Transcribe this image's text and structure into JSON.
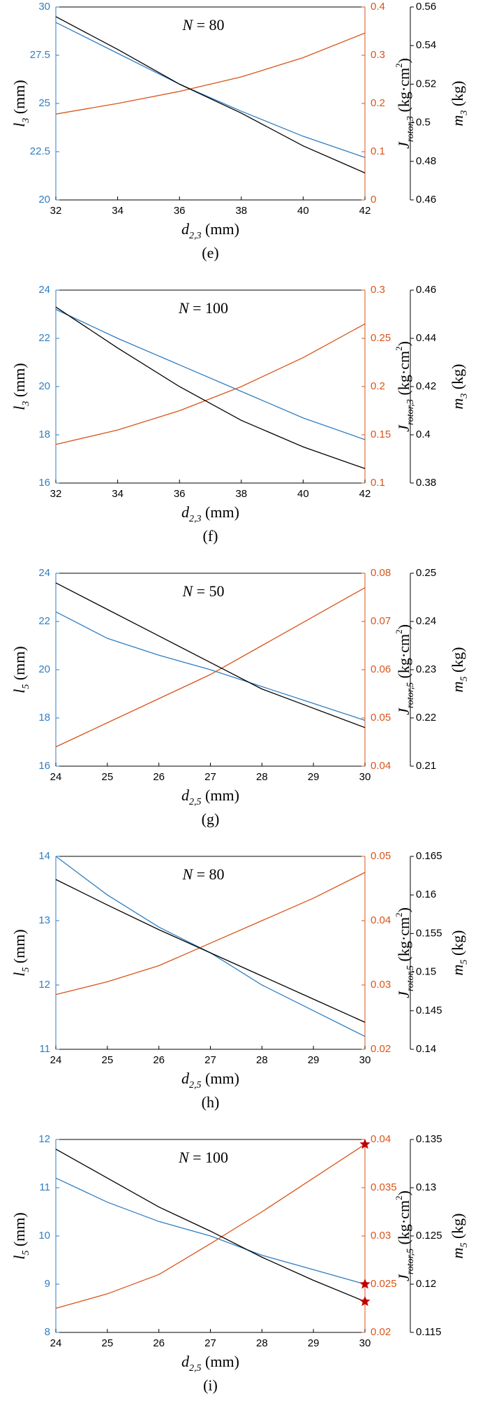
{
  "chart_data": [
    {
      "type": "line",
      "annotation": [
        {
          "text": "N",
          "style": "italic"
        },
        {
          "text": " = 80"
        }
      ],
      "panel_label": "(e)",
      "xlabel": [
        {
          "text": "d",
          "style": "italic"
        },
        {
          "text": "2,3",
          "style": "sub"
        },
        {
          "text": " (mm)"
        }
      ],
      "ylabel": [
        {
          "text": "l",
          "style": "italic"
        },
        {
          "text": "3",
          "style": "sub"
        },
        {
          "text": " (mm)"
        }
      ],
      "y2label": [
        {
          "text": "J",
          "style": "italic"
        },
        {
          "text": "rotor,3",
          "style": "sub"
        },
        {
          "text": " (kg·cm"
        },
        {
          "text": "2",
          "style": "sup"
        },
        {
          "text": ")"
        }
      ],
      "y3label": [
        {
          "text": "m",
          "style": "italic"
        },
        {
          "text": "3",
          "style": "sub"
        },
        {
          "text": " (kg)"
        }
      ],
      "x": [
        32,
        34,
        36,
        38,
        40,
        42
      ],
      "xlim": [
        32,
        42
      ],
      "xticks": [
        32,
        34,
        36,
        38,
        40,
        42
      ],
      "ylim": [
        20,
        30
      ],
      "yticks": [
        20,
        22.5,
        25,
        27.5,
        30
      ],
      "y2lim": [
        0,
        0.4
      ],
      "y2ticks": [
        0,
        0.1,
        0.2,
        0.3,
        0.4
      ],
      "y3lim": [
        0.46,
        0.56
      ],
      "y3ticks": [
        0.46,
        0.48,
        0.5,
        0.52,
        0.54,
        0.56
      ],
      "series": [
        {
          "axis": "y",
          "color": "#2f7ec2",
          "values": [
            29.2,
            27.6,
            26.0,
            24.6,
            23.3,
            22.2
          ]
        },
        {
          "axis": "y2",
          "color": "#d9541a",
          "values": [
            0.178,
            0.2,
            0.225,
            0.255,
            0.295,
            0.346
          ]
        },
        {
          "axis": "y3",
          "color": "#000000",
          "values": [
            0.555,
            0.538,
            0.52,
            0.505,
            0.488,
            0.474
          ]
        }
      ]
    },
    {
      "type": "line",
      "annotation": [
        {
          "text": "N",
          "style": "italic"
        },
        {
          "text": " = 100"
        }
      ],
      "panel_label": "(f)",
      "xlabel": [
        {
          "text": "d",
          "style": "italic"
        },
        {
          "text": "2,3",
          "style": "sub"
        },
        {
          "text": " (mm)"
        }
      ],
      "ylabel": [
        {
          "text": "l",
          "style": "italic"
        },
        {
          "text": "3",
          "style": "sub"
        },
        {
          "text": " (mm)"
        }
      ],
      "y2label": [
        {
          "text": "J",
          "style": "italic"
        },
        {
          "text": "rotor,3",
          "style": "sub"
        },
        {
          "text": " (kg·cm"
        },
        {
          "text": "2",
          "style": "sup"
        },
        {
          "text": ")"
        }
      ],
      "y3label": [
        {
          "text": "m",
          "style": "italic"
        },
        {
          "text": "3",
          "style": "sub"
        },
        {
          "text": " (kg)"
        }
      ],
      "x": [
        32,
        34,
        36,
        38,
        40,
        42
      ],
      "xlim": [
        32,
        42
      ],
      "xticks": [
        32,
        34,
        36,
        38,
        40,
        42
      ],
      "ylim": [
        16,
        24
      ],
      "yticks": [
        16,
        18,
        20,
        22,
        24
      ],
      "y2lim": [
        0.1,
        0.3
      ],
      "y2ticks": [
        0.1,
        0.15,
        0.2,
        0.25,
        0.3
      ],
      "y3lim": [
        0.38,
        0.46
      ],
      "y3ticks": [
        0.38,
        0.4,
        0.42,
        0.44,
        0.46
      ],
      "series": [
        {
          "axis": "y",
          "color": "#2f7ec2",
          "values": [
            23.2,
            22.0,
            20.9,
            19.8,
            18.7,
            17.8
          ]
        },
        {
          "axis": "y2",
          "color": "#d9541a",
          "values": [
            0.14,
            0.155,
            0.175,
            0.2,
            0.23,
            0.265
          ]
        },
        {
          "axis": "y3",
          "color": "#000000",
          "values": [
            0.453,
            0.436,
            0.42,
            0.406,
            0.395,
            0.386
          ]
        }
      ]
    },
    {
      "type": "line",
      "annotation": [
        {
          "text": "N",
          "style": "italic"
        },
        {
          "text": " = 50"
        }
      ],
      "panel_label": "(g)",
      "xlabel": [
        {
          "text": "d",
          "style": "italic"
        },
        {
          "text": "2,5",
          "style": "sub"
        },
        {
          "text": " (mm)"
        }
      ],
      "ylabel": [
        {
          "text": "l",
          "style": "italic"
        },
        {
          "text": "5",
          "style": "sub"
        },
        {
          "text": " (mm)"
        }
      ],
      "y2label": [
        {
          "text": "J",
          "style": "italic"
        },
        {
          "text": "rotor,5",
          "style": "sub"
        },
        {
          "text": " (kg·cm"
        },
        {
          "text": "2",
          "style": "sup"
        },
        {
          "text": ")"
        }
      ],
      "y3label": [
        {
          "text": "m",
          "style": "italic"
        },
        {
          "text": "5",
          "style": "sub"
        },
        {
          "text": " (kg)"
        }
      ],
      "x": [
        24,
        25,
        26,
        27,
        28,
        29,
        30
      ],
      "xlim": [
        24,
        30
      ],
      "xticks": [
        24,
        25,
        26,
        27,
        28,
        29,
        30
      ],
      "ylim": [
        16,
        24
      ],
      "yticks": [
        16,
        18,
        20,
        22,
        24
      ],
      "y2lim": [
        0.04,
        0.08
      ],
      "y2ticks": [
        0.04,
        0.05,
        0.06,
        0.07,
        0.08
      ],
      "y3lim": [
        0.21,
        0.25
      ],
      "y3ticks": [
        0.21,
        0.22,
        0.23,
        0.24,
        0.25
      ],
      "series": [
        {
          "axis": "y",
          "color": "#2f7ec2",
          "values": [
            22.4,
            21.3,
            20.6,
            20.0,
            19.3,
            18.6,
            17.9
          ]
        },
        {
          "axis": "y2",
          "color": "#d9541a",
          "values": [
            0.044,
            0.049,
            0.054,
            0.059,
            0.065,
            0.071,
            0.077
          ]
        },
        {
          "axis": "y3",
          "color": "#000000",
          "values": [
            0.248,
            0.2425,
            0.237,
            0.2315,
            0.226,
            0.222,
            0.218
          ]
        }
      ]
    },
    {
      "type": "line",
      "annotation": [
        {
          "text": "N",
          "style": "italic"
        },
        {
          "text": " = 80"
        }
      ],
      "panel_label": "(h)",
      "xlabel": [
        {
          "text": "d",
          "style": "italic"
        },
        {
          "text": "2,5",
          "style": "sub"
        },
        {
          "text": " (mm)"
        }
      ],
      "ylabel": [
        {
          "text": "l",
          "style": "italic"
        },
        {
          "text": "5",
          "style": "sub"
        },
        {
          "text": " (mm)"
        }
      ],
      "y2label": [
        {
          "text": "J",
          "style": "italic"
        },
        {
          "text": "rotor,5",
          "style": "sub"
        },
        {
          "text": " (kg·cm"
        },
        {
          "text": "2",
          "style": "sup"
        },
        {
          "text": ")"
        }
      ],
      "y3label": [
        {
          "text": "m",
          "style": "italic"
        },
        {
          "text": "5",
          "style": "sub"
        },
        {
          "text": " (kg)"
        }
      ],
      "x": [
        24,
        25,
        26,
        27,
        28,
        29,
        30
      ],
      "xlim": [
        24,
        30
      ],
      "xticks": [
        24,
        25,
        26,
        27,
        28,
        29,
        30
      ],
      "ylim": [
        11,
        14
      ],
      "yticks": [
        11,
        12,
        13,
        14
      ],
      "y2lim": [
        0.02,
        0.05
      ],
      "y2ticks": [
        0.02,
        0.03,
        0.04,
        0.05
      ],
      "y3lim": [
        0.14,
        0.165
      ],
      "y3ticks": [
        0.14,
        0.145,
        0.15,
        0.155,
        0.16,
        0.165
      ],
      "series": [
        {
          "axis": "y",
          "color": "#2f7ec2",
          "values": [
            14.0,
            13.4,
            12.9,
            12.5,
            12.0,
            11.6,
            11.2
          ]
        },
        {
          "axis": "y2",
          "color": "#d9541a",
          "values": [
            0.0285,
            0.0305,
            0.033,
            0.0365,
            0.04,
            0.0435,
            0.0475
          ]
        },
        {
          "axis": "y3",
          "color": "#000000",
          "values": [
            0.162,
            0.1587,
            0.1555,
            0.1525,
            0.1495,
            0.1465,
            0.1435
          ]
        }
      ]
    },
    {
      "type": "line",
      "annotation": [
        {
          "text": "N",
          "style": "italic"
        },
        {
          "text": " = 100"
        }
      ],
      "panel_label": "(i)",
      "xlabel": [
        {
          "text": "d",
          "style": "italic"
        },
        {
          "text": "2,5",
          "style": "sub"
        },
        {
          "text": " (mm)"
        }
      ],
      "ylabel": [
        {
          "text": "l",
          "style": "italic"
        },
        {
          "text": "5",
          "style": "sub"
        },
        {
          "text": " (mm)"
        }
      ],
      "y2label": [
        {
          "text": "J",
          "style": "italic"
        },
        {
          "text": "rotor,5",
          "style": "sub"
        },
        {
          "text": " (kg·cm"
        },
        {
          "text": "2",
          "style": "sup"
        },
        {
          "text": ")"
        }
      ],
      "y3label": [
        {
          "text": "m",
          "style": "italic"
        },
        {
          "text": "5",
          "style": "sub"
        },
        {
          "text": " (kg)"
        }
      ],
      "x": [
        24,
        25,
        26,
        27,
        28,
        29,
        30
      ],
      "xlim": [
        24,
        30
      ],
      "xticks": [
        24,
        25,
        26,
        27,
        28,
        29,
        30
      ],
      "ylim": [
        8,
        12
      ],
      "yticks": [
        8,
        9,
        10,
        11,
        12
      ],
      "y2lim": [
        0.02,
        0.04
      ],
      "y2ticks": [
        0.02,
        0.025,
        0.03,
        0.035,
        0.04
      ],
      "y3lim": [
        0.115,
        0.135
      ],
      "y3ticks": [
        0.115,
        0.12,
        0.125,
        0.13,
        0.135
      ],
      "end_marker": "star",
      "end_marker_color": "#c00000",
      "series": [
        {
          "axis": "y",
          "color": "#2f7ec2",
          "values": [
            11.2,
            10.7,
            10.3,
            10.0,
            9.6,
            9.3,
            9.0
          ]
        },
        {
          "axis": "y2",
          "color": "#d9541a",
          "values": [
            0.0225,
            0.024,
            0.026,
            0.0292,
            0.0325,
            0.036,
            0.0395
          ]
        },
        {
          "axis": "y3",
          "color": "#000000",
          "values": [
            0.134,
            0.131,
            0.128,
            0.1255,
            0.1228,
            0.1204,
            0.1182
          ]
        }
      ]
    }
  ]
}
